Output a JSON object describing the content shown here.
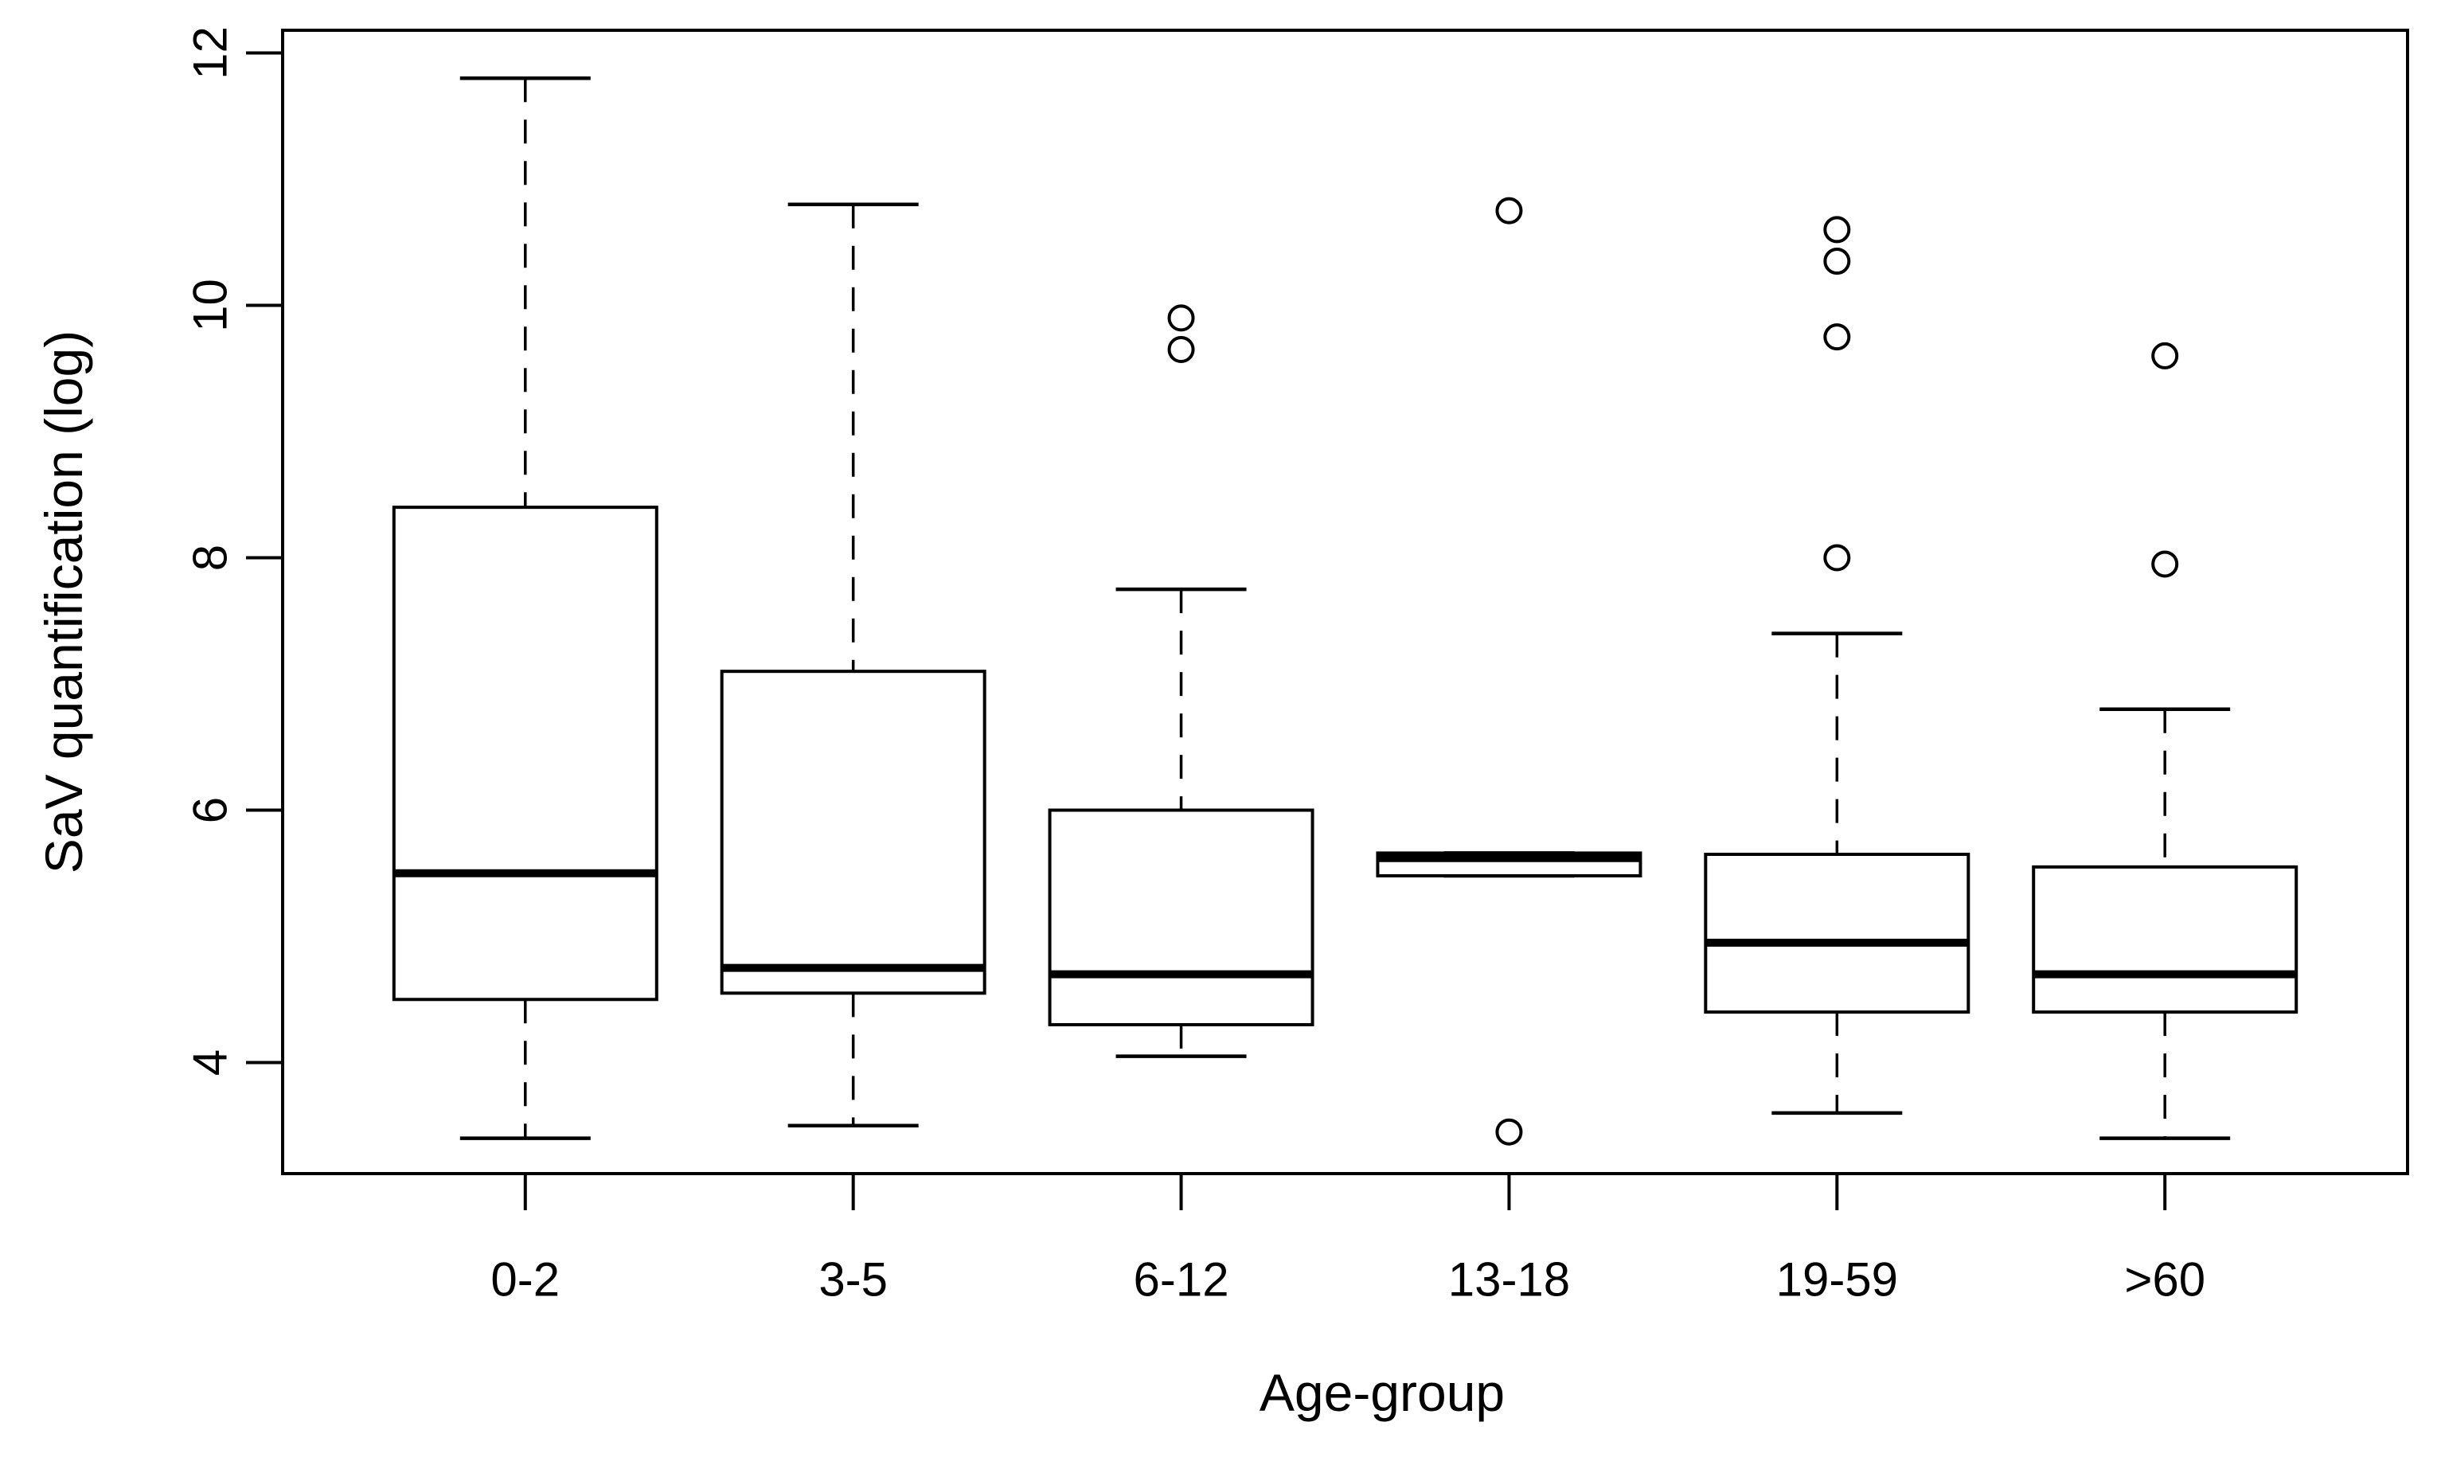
{
  "figure": {
    "background": "#ffffff",
    "line_color": "#000000"
  },
  "chart_data": {
    "type": "boxplot",
    "title": "",
    "xlabel": "Age-group",
    "ylabel": "SaV quantification (log)",
    "categories": [
      "0-2",
      "3-5",
      "6-12",
      "13-18",
      "19-59",
      ">60"
    ],
    "yticks": [
      4,
      6,
      8,
      10,
      12
    ],
    "ylim": [
      3.12,
      12.18
    ],
    "xlim": [
      0.26,
      6.74
    ],
    "grid": false,
    "legend": "none",
    "boxes": [
      {
        "category": "0-2",
        "whisker_low": 3.4,
        "q1": 4.5,
        "median": 5.5,
        "q3": 8.4,
        "whisker_high": 11.8,
        "outliers": []
      },
      {
        "category": "3-5",
        "whisker_low": 3.5,
        "q1": 4.55,
        "median": 4.75,
        "q3": 7.1,
        "whisker_high": 10.8,
        "outliers": []
      },
      {
        "category": "6-12",
        "whisker_low": 4.05,
        "q1": 4.3,
        "median": 4.7,
        "q3": 6.0,
        "whisker_high": 7.75,
        "outliers": [
          9.9,
          9.65
        ]
      },
      {
        "category": "13-18",
        "whisker_low": 5.48,
        "q1": 5.48,
        "median": 5.62,
        "q3": 5.66,
        "whisker_high": 5.66,
        "outliers": [
          10.75,
          3.45
        ]
      },
      {
        "category": "19-59",
        "whisker_low": 3.6,
        "q1": 4.4,
        "median": 4.95,
        "q3": 5.65,
        "whisker_high": 7.4,
        "outliers": [
          10.6,
          10.35,
          9.75,
          8.0
        ]
      },
      {
        "category": ">60",
        "whisker_low": 3.4,
        "q1": 4.4,
        "median": 4.7,
        "q3": 5.55,
        "whisker_high": 6.8,
        "outliers": [
          9.6,
          7.95
        ]
      }
    ]
  }
}
